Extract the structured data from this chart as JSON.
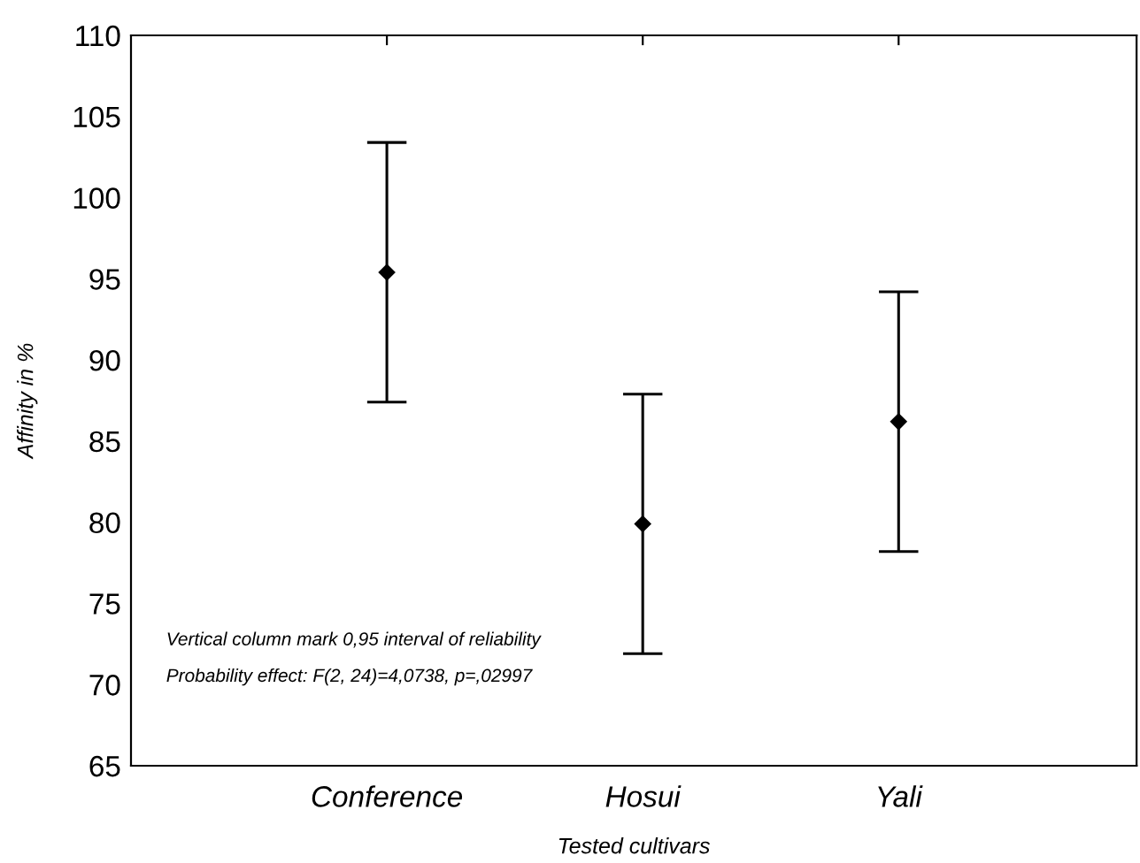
{
  "chart_data": {
    "type": "scatter",
    "xlabel": "Tested cultivars",
    "ylabel": "Affinity in %",
    "categories": [
      "Conference",
      "Hosui",
      "Yali"
    ],
    "values": [
      95.4,
      79.9,
      86.2
    ],
    "errors": [
      8,
      8,
      8
    ],
    "color": "#000000",
    "marker": "diamond",
    "grid": false,
    "ylim": [
      65,
      110
    ],
    "yticks": [
      65,
      70,
      75,
      80,
      85,
      90,
      95,
      100,
      105,
      110
    ],
    "annotations": [
      "Vertical column mark 0,95 interval of reliability",
      "Probability effect: F(2, 24)=4,0738, p=,02997"
    ]
  }
}
